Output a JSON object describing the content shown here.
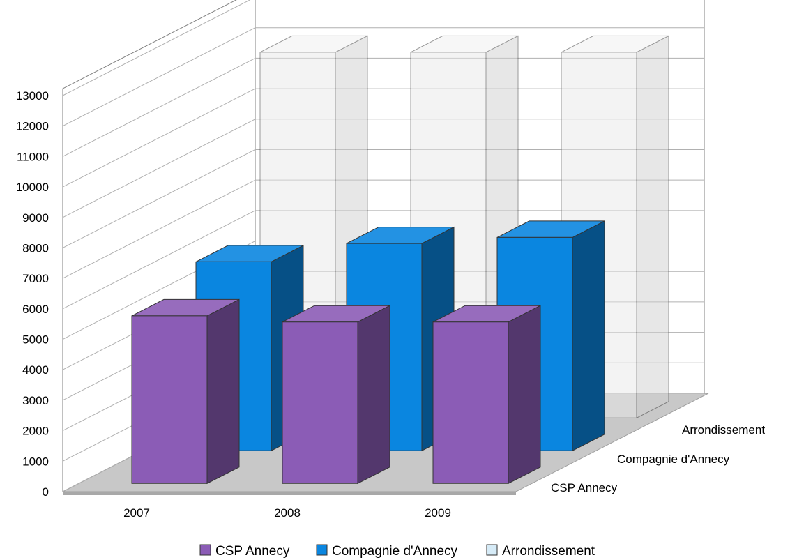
{
  "chart_data": {
    "type": "bar",
    "subtype": "3d-grouped-depth",
    "categories": [
      "2007",
      "2008",
      "2009"
    ],
    "series": [
      {
        "name": "CSP Annecy",
        "values": [
          5500,
          5300,
          5300
        ],
        "color": "#8b5cb6"
      },
      {
        "name": "Compagnie d'Annecy",
        "values": [
          6200,
          6800,
          7000
        ],
        "color": "#0a86e0"
      },
      {
        "name": "Arrondissement",
        "values": [
          12000,
          12000,
          12000
        ],
        "color": "#d6ebf7"
      }
    ],
    "y_ticks": [
      "0",
      "1000",
      "2000",
      "3000",
      "4000",
      "5000",
      "6000",
      "7000",
      "8000",
      "9000",
      "10000",
      "11000",
      "12000",
      "13000"
    ],
    "ylim": [
      0,
      13000
    ],
    "depth_labels": [
      "CSP Annecy",
      "Compagnie d'Annecy",
      "Arrondissement"
    ],
    "legend": [
      "CSP Annecy",
      "Compagnie d'Annecy",
      "Arrondissement"
    ],
    "legend_position": "bottom",
    "grid": true
  }
}
